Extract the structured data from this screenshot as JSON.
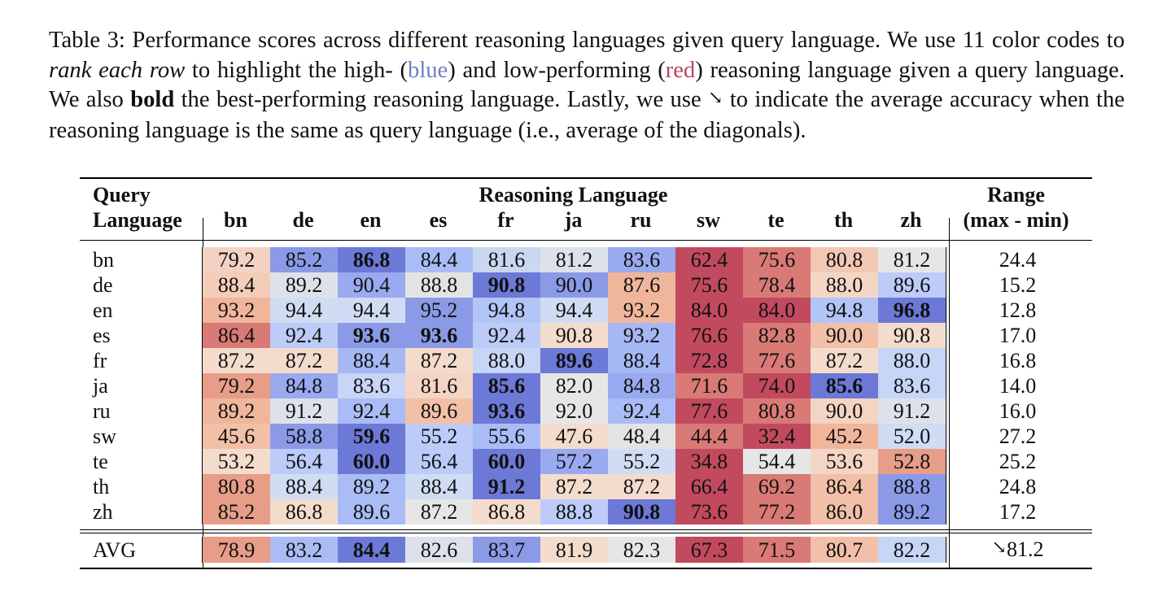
{
  "caption": {
    "prefix": "Table 3: Performance scores across different reasoning languages given query language. We use 11 color codes to ",
    "rank_emph": "rank each row",
    "mid1": " to highlight the high- (",
    "blue_word": "blue",
    "mid2": ") and low-performing (",
    "red_word": "red",
    "mid3": ") reasoning language given a query language. We also ",
    "bold_word": "bold",
    "mid4": " the best-performing reasoning language. Lastly, we use ",
    "arrow_glyph": "↘",
    "suffix": " to indicate the average accuracy when the reasoning language is the same as query language (i.e., average of the diagonals)."
  },
  "table": {
    "header": {
      "query_line1": "Query",
      "query_line2": "Language",
      "group_label": "Reasoning Language",
      "range_line1": "Range",
      "range_line2": "(max - min)",
      "columns": [
        "bn",
        "de",
        "en",
        "es",
        "fr",
        "ja",
        "ru",
        "sw",
        "te",
        "th",
        "zh"
      ]
    },
    "rows": [
      {
        "lang": "bn",
        "values": [
          "79.2",
          "85.2",
          "86.8",
          "84.4",
          "81.6",
          "81.2",
          "83.6",
          "62.4",
          "75.6",
          "80.8",
          "81.2"
        ],
        "colors": [
          "#f3d2c4",
          "#8a9ae6",
          "#6c79d7",
          "#aabcf5",
          "#c9d7f1",
          "#dde2ea",
          "#9aaaf0",
          "#c24a5e",
          "#d97a76",
          "#f2c7b4",
          "#e6e6e6"
        ],
        "bold": [
          2
        ],
        "range": "24.4"
      },
      {
        "lang": "de",
        "values": [
          "88.4",
          "89.2",
          "90.4",
          "88.8",
          "90.8",
          "90.0",
          "87.6",
          "75.6",
          "78.4",
          "88.0",
          "89.6"
        ],
        "colors": [
          "#f4cdb9",
          "#dde2ea",
          "#9aaaf0",
          "#e3e3e3",
          "#6c79d7",
          "#8a9ae6",
          "#f0b69b",
          "#c24a5e",
          "#d97a76",
          "#f5d6c5",
          "#bccbf8"
        ],
        "bold": [
          4
        ],
        "range": "15.2"
      },
      {
        "lang": "en",
        "values": [
          "93.2",
          "94.4",
          "94.4",
          "95.2",
          "94.8",
          "94.4",
          "93.2",
          "84.0",
          "84.0",
          "94.8",
          "96.8"
        ],
        "colors": [
          "#f0b69b",
          "#d0dcf3",
          "#d0dcf3",
          "#8a9ae6",
          "#b3c4f7",
          "#d0dcf3",
          "#f0b69b",
          "#c24a5e",
          "#c24a5e",
          "#b3c4f7",
          "#6c79d7"
        ],
        "bold": [
          10
        ],
        "range": "12.8"
      },
      {
        "lang": "es",
        "values": [
          "86.4",
          "92.4",
          "93.6",
          "93.6",
          "92.4",
          "90.8",
          "93.2",
          "76.6",
          "82.8",
          "90.0",
          "90.8"
        ],
        "colors": [
          "#d97a76",
          "#bccbf8",
          "#8a9ae6",
          "#8a9ae6",
          "#bccbf8",
          "#f4dccd",
          "#a6b8f3",
          "#c24a5e",
          "#d97a76",
          "#f2c0a8",
          "#f4dccd"
        ],
        "bold": [
          2,
          3
        ],
        "range": "17.0"
      },
      {
        "lang": "fr",
        "values": [
          "87.2",
          "87.2",
          "88.4",
          "87.2",
          "88.0",
          "89.6",
          "88.4",
          "72.8",
          "77.6",
          "87.2",
          "88.0"
        ],
        "colors": [
          "#f4dccd",
          "#f4dccd",
          "#a6b8f3",
          "#f4dccd",
          "#c7d5f6",
          "#6c79d7",
          "#a6b8f3",
          "#c24a5e",
          "#d97a76",
          "#f4dccd",
          "#c7d5f6"
        ],
        "bold": [
          5
        ],
        "range": "16.8"
      },
      {
        "lang": "ja",
        "values": [
          "79.2",
          "84.8",
          "83.6",
          "81.6",
          "85.6",
          "82.0",
          "84.8",
          "71.6",
          "74.0",
          "85.6",
          "83.6"
        ],
        "colors": [
          "#e79d87",
          "#9aaaf0",
          "#c7d5f6",
          "#f4d4c3",
          "#6c79d7",
          "#e6e6e6",
          "#9aaaf0",
          "#d97a76",
          "#c24a5e",
          "#6c79d7",
          "#c7d5f6"
        ],
        "bold": [
          4,
          9
        ],
        "range": "14.0"
      },
      {
        "lang": "ru",
        "values": [
          "89.2",
          "91.2",
          "92.4",
          "89.6",
          "93.6",
          "92.0",
          "92.4",
          "77.6",
          "80.8",
          "90.0",
          "91.2"
        ],
        "colors": [
          "#f0b69b",
          "#dde2ea",
          "#aabcf5",
          "#f2c0a8",
          "#6c79d7",
          "#e6e6e6",
          "#aabcf5",
          "#c24a5e",
          "#d97a76",
          "#f4d4c3",
          "#dde2ea"
        ],
        "bold": [
          4
        ],
        "range": "16.0"
      },
      {
        "lang": "sw",
        "values": [
          "45.6",
          "58.8",
          "59.6",
          "55.2",
          "55.6",
          "47.6",
          "48.4",
          "44.4",
          "32.4",
          "45.2",
          "52.0"
        ],
        "colors": [
          "#f2c0a8",
          "#8a9ae6",
          "#6c79d7",
          "#bccbf8",
          "#aabcf5",
          "#f4dccd",
          "#e3e3e3",
          "#d97a76",
          "#c24a5e",
          "#f0b69b",
          "#d0dcf3"
        ],
        "bold": [
          2
        ],
        "range": "27.2"
      },
      {
        "lang": "te",
        "values": [
          "53.2",
          "56.4",
          "60.0",
          "56.4",
          "60.0",
          "57.2",
          "55.2",
          "34.8",
          "54.4",
          "53.6",
          "52.8"
        ],
        "colors": [
          "#f4dccd",
          "#bccbf8",
          "#6c79d7",
          "#bccbf8",
          "#6c79d7",
          "#9aaaf0",
          "#d0dcf3",
          "#c24a5e",
          "#e6e6e6",
          "#f4d4c3",
          "#e79d87"
        ],
        "bold": [
          2,
          4
        ],
        "range": "25.2"
      },
      {
        "lang": "th",
        "values": [
          "80.8",
          "88.4",
          "89.2",
          "88.4",
          "91.2",
          "87.2",
          "87.2",
          "66.4",
          "69.2",
          "86.4",
          "88.8"
        ],
        "colors": [
          "#e79d87",
          "#d0dcf3",
          "#aabcf5",
          "#d0dcf3",
          "#6c79d7",
          "#f4dccd",
          "#f4dccd",
          "#c24a5e",
          "#d97a76",
          "#f2c0a8",
          "#8a9ae6"
        ],
        "bold": [
          4
        ],
        "range": "24.8"
      },
      {
        "lang": "zh",
        "values": [
          "85.2",
          "86.8",
          "89.6",
          "87.2",
          "86.8",
          "88.8",
          "90.8",
          "73.6",
          "77.2",
          "86.0",
          "89.2"
        ],
        "colors": [
          "#e79d87",
          "#f4dccd",
          "#aabcf5",
          "#e6e6e6",
          "#f4dccd",
          "#bccbf8",
          "#6c79d7",
          "#c24a5e",
          "#d97a76",
          "#f2c0a8",
          "#8a9ae6"
        ],
        "bold": [
          6
        ],
        "range": "17.2"
      }
    ],
    "avg": {
      "lang": "AVG",
      "values": [
        "78.9",
        "83.2",
        "84.4",
        "82.6",
        "83.7",
        "81.9",
        "82.3",
        "67.3",
        "71.5",
        "80.7",
        "82.2"
      ],
      "colors": [
        "#e79d87",
        "#aabcf5",
        "#6c79d7",
        "#dde2ea",
        "#8a9ae6",
        "#f4dccd",
        "#e6e6e6",
        "#c24a5e",
        "#d97a76",
        "#f2c0a8",
        "#c7d5f6"
      ],
      "bold": [
        2
      ],
      "range_arrow": "↘",
      "range": "81.2"
    }
  }
}
